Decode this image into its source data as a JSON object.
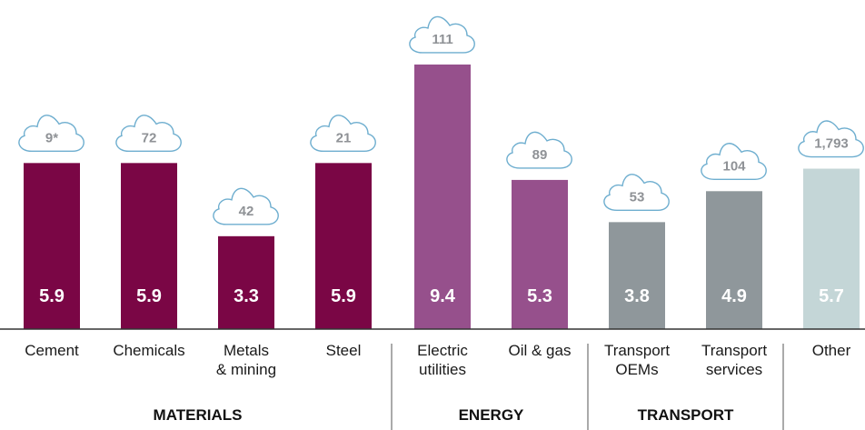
{
  "chart_data": {
    "type": "bar",
    "title": "",
    "xlabel": "",
    "ylabel": "",
    "ylim": [
      0,
      12
    ],
    "grid": false,
    "legend": "none",
    "categories": [
      [
        "Cement"
      ],
      [
        "Chemicals"
      ],
      [
        "Metals",
        "& mining"
      ],
      [
        "Steel"
      ],
      [
        "Electric",
        "utilities"
      ],
      [
        "Oil & gas"
      ],
      [
        "Transport",
        "OEMs"
      ],
      [
        "Transport",
        "services"
      ],
      [
        "Other"
      ]
    ],
    "values": [
      5.9,
      5.9,
      3.3,
      5.9,
      9.4,
      5.3,
      3.8,
      4.9,
      5.7
    ],
    "value_labels": [
      "5.9",
      "5.9",
      "3.3",
      "5.9",
      "9.4",
      "5.3",
      "3.8",
      "4.9",
      "5.7"
    ],
    "cloud_labels": [
      "9*",
      "72",
      "42",
      "21",
      "111",
      "89",
      "53",
      "104",
      "1,793"
    ],
    "bar_colors": [
      "#7a0645",
      "#7a0645",
      "#7a0645",
      "#7a0645",
      "#96508c",
      "#96508c",
      "#8f979b",
      "#8f979b",
      "#c4d6d7"
    ],
    "groups": [
      {
        "label": "MATERIALS",
        "start": 0,
        "end": 3
      },
      {
        "label": "ENERGY",
        "start": 4,
        "end": 5
      },
      {
        "label": "TRANSPORT",
        "start": 6,
        "end": 7
      },
      {
        "label": "",
        "start": 8,
        "end": 8
      }
    ],
    "colors": {
      "cloud_stroke": "#6eaecf",
      "cloud_text": "#8f9296",
      "axis": "#333333",
      "divider": "#555555"
    }
  }
}
